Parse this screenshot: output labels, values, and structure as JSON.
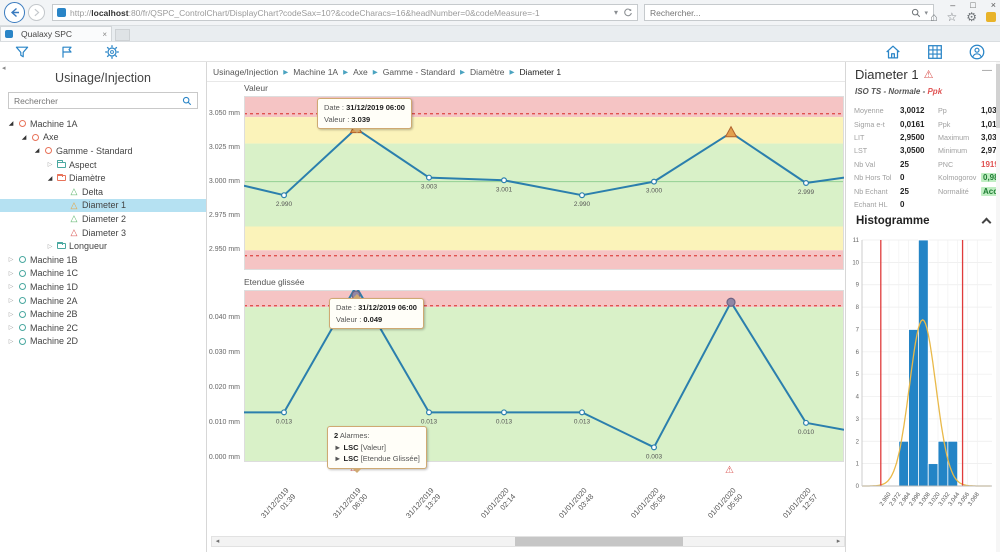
{
  "browser": {
    "url_prefix": "http://",
    "url_host": "localhost",
    "url_rest": ":80/fr/QSPC_ControlChart/DisplayChart?codeSax=10?&codeCharacs=16&headNumber=0&codeMeasure=-1",
    "search_placeholder": "Rechercher...",
    "tab_title": "Qualaxy SPC",
    "window_controls": {
      "minimize": "–",
      "maximize": "□",
      "close": "×"
    },
    "tab_close": "×"
  },
  "sidebar": {
    "title": "Usinage/Injection",
    "search_placeholder": "Rechercher",
    "tree": [
      {
        "label": "Machine 1A",
        "level": 0,
        "icon": "circle",
        "color": "#e8735a",
        "expander": "expanded",
        "selected": false
      },
      {
        "label": "Axe",
        "level": 1,
        "icon": "circle",
        "color": "#e8735a",
        "expander": "expanded",
        "selected": false
      },
      {
        "label": "Gamme - Standard",
        "level": 2,
        "icon": "circle",
        "color": "#e8735a",
        "expander": "expanded",
        "selected": false
      },
      {
        "label": "Aspect",
        "level": 3,
        "icon": "folder",
        "color": "#4aa8a0",
        "expander": "collapsed",
        "selected": false
      },
      {
        "label": "Diamètre",
        "level": 3,
        "icon": "folder",
        "color": "#e8735a",
        "expander": "expanded",
        "selected": false
      },
      {
        "label": "Delta",
        "level": 4,
        "icon": "triangle",
        "color": "#58b368",
        "expander": "none",
        "selected": false
      },
      {
        "label": "Diameter 1",
        "level": 4,
        "icon": "triangle",
        "color": "#e8a23c",
        "expander": "none",
        "selected": true
      },
      {
        "label": "Diameter 2",
        "level": 4,
        "icon": "triangle",
        "color": "#58b368",
        "expander": "none",
        "selected": false
      },
      {
        "label": "Diameter 3",
        "level": 4,
        "icon": "triangle",
        "color": "#d9534f",
        "expander": "none",
        "selected": false
      },
      {
        "label": "Longueur",
        "level": 3,
        "icon": "folder",
        "color": "#4aa8a0",
        "expander": "collapsed",
        "selected": false
      },
      {
        "label": "Machine 1B",
        "level": 0,
        "icon": "circle",
        "color": "#4aa8a0",
        "expander": "collapsed",
        "selected": false
      },
      {
        "label": "Machine 1C",
        "level": 0,
        "icon": "circle",
        "color": "#4aa8a0",
        "expander": "collapsed",
        "selected": false
      },
      {
        "label": "Machine 1D",
        "level": 0,
        "icon": "circle",
        "color": "#4aa8a0",
        "expander": "collapsed",
        "selected": false
      },
      {
        "label": "Machine 2A",
        "level": 0,
        "icon": "circle",
        "color": "#4aa8a0",
        "expander": "collapsed",
        "selected": false
      },
      {
        "label": "Machine 2B",
        "level": 0,
        "icon": "circle",
        "color": "#4aa8a0",
        "expander": "collapsed",
        "selected": false
      },
      {
        "label": "Machine 2C",
        "level": 0,
        "icon": "circle",
        "color": "#4aa8a0",
        "expander": "collapsed",
        "selected": false
      },
      {
        "label": "Machine 2D",
        "level": 0,
        "icon": "circle",
        "color": "#4aa8a0",
        "expander": "collapsed",
        "selected": false
      }
    ]
  },
  "breadcrumb": [
    "Usinage/Injection",
    "Machine 1A",
    "Axe",
    "Gamme - Standard",
    "Diamètre",
    "Diameter 1"
  ],
  "chart_data": [
    {
      "type": "line",
      "title": "Valeur",
      "unit": "mm",
      "categories": [
        "31/12/2019 01:39",
        "31/12/2019 06:00",
        "31/12/2019 13:29",
        "01/01/2020 02:14",
        "01/01/2020 03:48",
        "01/01/2020 05:05",
        "01/01/2020 05:50",
        "01/01/2020 12:57"
      ],
      "values": [
        2.997,
        2.99,
        3.039,
        3.003,
        3.001,
        2.99,
        3.0,
        3.036,
        2.999,
        3.003
      ],
      "point_labels": [
        null,
        "2.990",
        null,
        "3.003",
        "3.001",
        "2.990",
        "3.000",
        null,
        "2.999",
        null
      ],
      "alarm_points": [
        2,
        7
      ],
      "marker_type": "triangle",
      "ylim": [
        2.935,
        3.063
      ],
      "yticks": [
        {
          "v": 3.05,
          "label": "3.050 mm"
        },
        {
          "v": 3.025,
          "label": "3.025 mm"
        },
        {
          "v": 3.0,
          "label": "3.000 mm"
        },
        {
          "v": 2.975,
          "label": "2.975 mm"
        },
        {
          "v": 2.95,
          "label": "2.950 mm"
        }
      ],
      "zones": [
        {
          "from": 3.0475,
          "to": 3.063,
          "color": "#f5c4c4"
        },
        {
          "from": 3.028,
          "to": 3.0475,
          "color": "#fbf3ba"
        },
        {
          "from": 2.967,
          "to": 3.028,
          "color": "#d9f1c8"
        },
        {
          "from": 2.9495,
          "to": 2.967,
          "color": "#fbf3ba"
        },
        {
          "from": 2.935,
          "to": 2.9495,
          "color": "#f5c4c4"
        }
      ],
      "limit_lines": [
        3.05,
        2.9455
      ],
      "center_line": 3.0,
      "tooltip": {
        "date_label": "Date :",
        "date": "31/12/2019 06:00",
        "value_label": "Valeur :",
        "value": "3.039"
      }
    },
    {
      "type": "line",
      "title": "Etendue glissée",
      "unit": "mm",
      "categories": [
        "31/12/2019 01:39",
        "31/12/2019 06:00",
        "31/12/2019 13:29",
        "01/01/2020 02:14",
        "01/01/2020 03:48",
        "01/01/2020 05:05",
        "01/01/2020 05:50",
        "01/01/2020 12:57"
      ],
      "values": [
        0.013,
        0.013,
        0.049,
        0.013,
        0.013,
        0.013,
        0.003,
        0.0445,
        0.01,
        0.008
      ],
      "point_labels": [
        null,
        "0.013",
        null,
        "0.013",
        "0.013",
        "0.013",
        "0.003",
        null,
        "0.010",
        null
      ],
      "alarm_points": [
        2,
        7
      ],
      "marker_type": "pin",
      "ylim": [
        -0.0012,
        0.048
      ],
      "yticks": [
        {
          "v": 0.04,
          "label": "0.040 mm"
        },
        {
          "v": 0.03,
          "label": "0.030 mm"
        },
        {
          "v": 0.02,
          "label": "0.020 mm"
        },
        {
          "v": 0.01,
          "label": "0.010 mm"
        },
        {
          "v": 0.0,
          "label": "0.000 mm"
        }
      ],
      "zones": [
        {
          "from": 0.0431,
          "to": 0.048,
          "color": "#f5c4c4"
        },
        {
          "from": -0.0012,
          "to": 0.0431,
          "color": "#d9f1c8"
        }
      ],
      "limit_lines": [
        0.0435
      ],
      "center_line": null,
      "tooltip": {
        "date_label": "Date :",
        "date": "31/12/2019 06:00",
        "value_label": "Valeur :",
        "value": "0.049"
      },
      "alarm_box": {
        "count": "2",
        "title": "Alarmes:",
        "bullet": "►",
        "items": [
          {
            "code": "LSC",
            "target": "[Valeur]"
          },
          {
            "code": "LSC",
            "target": "[Etendue Glissée]"
          }
        ]
      }
    },
    {
      "type": "bar",
      "title": "Histogramme",
      "bin_start": 2.972,
      "bin_width": 0.012,
      "counts": [
        2,
        7,
        11,
        1,
        2,
        2
      ],
      "xlabels": [
        "2.960",
        "2.972",
        "2.984",
        "2.996",
        "3.008",
        "3.020",
        "3.032",
        "3.044",
        "3.056",
        "3.068"
      ],
      "xlim": [
        2.927,
        3.086
      ],
      "ylim": [
        0,
        11
      ],
      "limit_lines": [
        2.95,
        3.05
      ],
      "curve": {
        "mean": 3.0012,
        "sigma": 0.0161,
        "amplitude": 7.43
      },
      "bar_color": "#2384c6",
      "curve_color": "#e9b949",
      "limit_color": "#e03b3b"
    }
  ],
  "right_panel": {
    "title": "Diameter 1",
    "subtitle_plain": "ISO TS - Normale - ",
    "subtitle_highlight": "Ppk",
    "collapse_glyph": "—",
    "stats_left": [
      {
        "label": "Moyenne",
        "value": "3,0012"
      },
      {
        "label": "Sigma e-t",
        "value": "0,0161"
      },
      {
        "label": "LIT",
        "value": "2,9500"
      },
      {
        "label": "LST",
        "value": "3,0500"
      },
      {
        "label": "Nb Val",
        "value": "25"
      },
      {
        "label": "Nb Hors Tol",
        "value": "0"
      },
      {
        "label": "Nb Echant",
        "value": "25"
      },
      {
        "label": "Echant HL",
        "value": "0"
      }
    ],
    "stats_right": [
      {
        "label": "Pp",
        "value": "1,037"
      },
      {
        "label": "Ppk",
        "value": "1,012"
      },
      {
        "label": "Maximum",
        "value": "3,039"
      },
      {
        "label": "Minimum",
        "value": "2,972"
      },
      {
        "label": "PNC",
        "value": "1919",
        "color": "red"
      },
      {
        "label": "Kolmogorov",
        "value": "0,986",
        "color": "green"
      },
      {
        "label": "Normalité",
        "value": "Accepté",
        "color": "green"
      }
    ],
    "histogram_title": "Histogramme"
  },
  "colors": {
    "accent_blue": "#2a85c7",
    "line_blue": "#2b7fad",
    "zone_red": "#f5c4c4",
    "zone_yellow": "#fbf3ba",
    "zone_green": "#d9f1c8",
    "alarm_red": "#d9534f",
    "selection_blue": "#b5e1f2"
  }
}
